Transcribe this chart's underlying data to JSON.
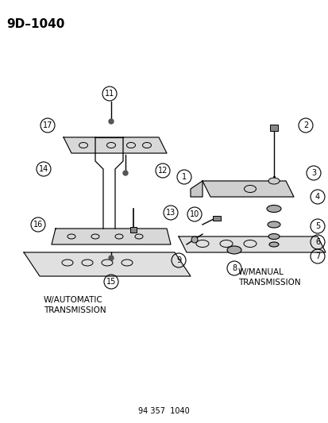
{
  "title": "9D–1040",
  "footer": "94 357  1040",
  "bg_color": "#ffffff",
  "text_color": "#000000",
  "label_auto": "W/AUTOMATIC\nTRANSMISSION",
  "label_manual": "W/MANUAL\nTRANSMISSION",
  "part_numbers_left": [
    11,
    17,
    14,
    16,
    12,
    13,
    15
  ],
  "part_numbers_right": [
    1,
    2,
    3,
    4,
    5,
    6,
    7,
    8,
    9,
    10
  ]
}
